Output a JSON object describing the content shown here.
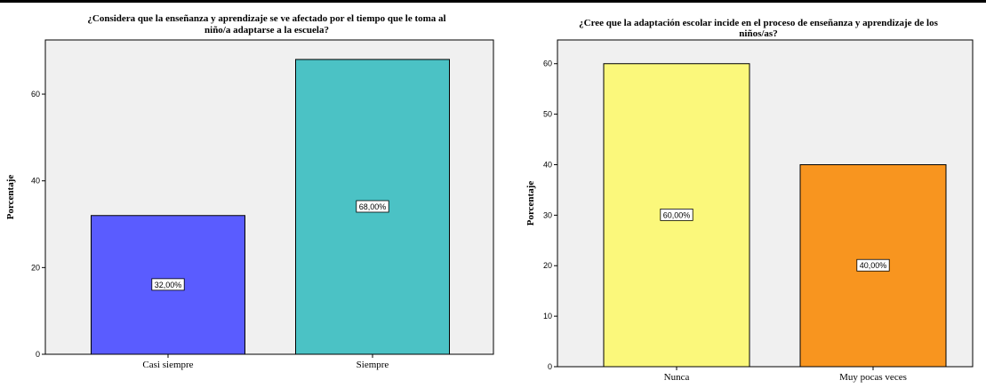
{
  "chart_data": [
    {
      "type": "bar",
      "title": "¿Considera que la enseñanza y aprendizaje se ve afectado por el tiempo que le toma al niño/a adaptarse a la escuela?",
      "title_lines": [
        "¿Considera que la enseñanza y aprendizaje se ve afectado por el tiempo que le toma al",
        "niño/a adaptarse a la escuela?"
      ],
      "xlabel": "",
      "ylabel": "Porcentaje",
      "categories": [
        "Casi siempre",
        "Siempre"
      ],
      "values": [
        32,
        68
      ],
      "data_labels": [
        "32,00%",
        "68,00%"
      ],
      "colors": [
        "#5a5cff",
        "#4bc2c5"
      ],
      "ylim": [
        0,
        72.5
      ],
      "yticks": [
        0,
        20,
        40,
        60
      ],
      "grid": false
    },
    {
      "type": "bar",
      "title": "¿Cree que la adaptación escolar incide en el proceso de enseñanza y aprendizaje de los niños/as?",
      "title_lines": [
        "¿Cree que la adaptación escolar incide en el proceso de enseñanza y aprendizaje de los",
        "niños/as?"
      ],
      "xlabel": "",
      "ylabel": "Porcentaje",
      "categories": [
        "Nunca",
        "Muy pocas veces"
      ],
      "values": [
        60,
        40
      ],
      "data_labels": [
        "60,00%",
        "40,00%"
      ],
      "colors": [
        "#fbf87b",
        "#f8951f"
      ],
      "ylim": [
        0,
        64.7
      ],
      "yticks": [
        0,
        10,
        20,
        30,
        40,
        50,
        60
      ],
      "grid": false
    }
  ]
}
